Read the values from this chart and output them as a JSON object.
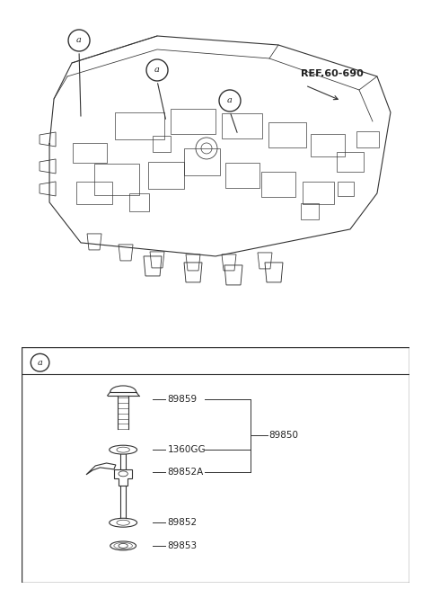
{
  "bg_color": "#ffffff",
  "line_color": "#333333",
  "text_color": "#222222",
  "fig_width": 4.8,
  "fig_height": 6.55,
  "dpi": 100,
  "ref_label": "REF.60-690",
  "parts": [
    {
      "id": "89859",
      "label": "89859"
    },
    {
      "id": "1360GG",
      "label": "1360GG"
    },
    {
      "id": "89852A",
      "label": "89852A"
    },
    {
      "id": "89852",
      "label": "89852"
    },
    {
      "id": "89853",
      "label": "89853"
    },
    {
      "id": "89850",
      "label": "89850"
    }
  ],
  "callout_label": "a",
  "top_callouts": [
    {
      "label": "a"
    },
    {
      "label": "a"
    },
    {
      "label": "a"
    }
  ]
}
